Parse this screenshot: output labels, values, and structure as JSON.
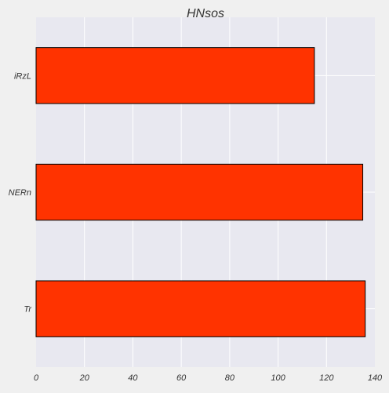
{
  "chart_data": {
    "type": "bar",
    "orientation": "horizontal",
    "title": "HNsos",
    "xlabel": "",
    "ylabel": "",
    "categories": [
      "iRzL",
      "NERn",
      "Tr"
    ],
    "values": [
      115,
      135,
      136
    ],
    "xlim": [
      0,
      140
    ],
    "xticks": [
      0,
      20,
      40,
      60,
      80,
      100,
      120,
      140
    ],
    "grid": true,
    "legend": "none",
    "colors": {
      "bar_fill": "#ff3300",
      "bar_edge": "#000000",
      "plot_background": "#e8e8f0",
      "figure_background": "#f0f0f0",
      "grid": "#ffffff",
      "text": "#333333"
    }
  }
}
